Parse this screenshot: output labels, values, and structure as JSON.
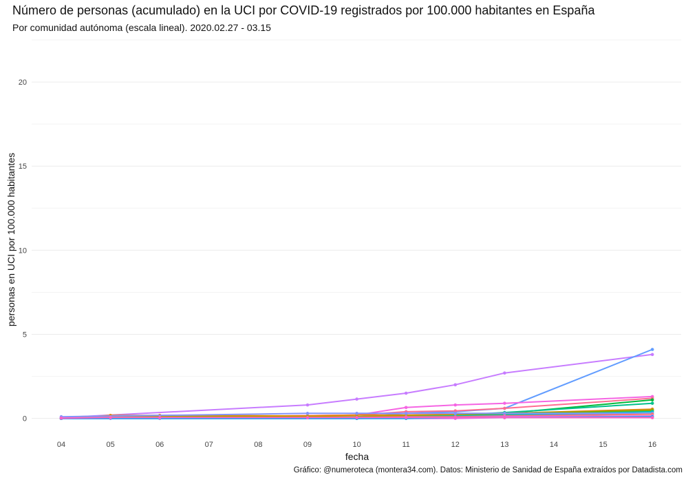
{
  "title": "Número de personas (acumulado) en la UCI por COVID-19 registrados por 100.000 habitantes en España",
  "subtitle": "Por comunidad autónoma (escala lineal). 2020.02.27 - 03.15",
  "caption": "Gráfico: @numeroteca (montera34.com). Datos: Ministerio de Sanidad de España extraídos por Datadista.com",
  "chart_data": {
    "type": "line",
    "xlabel": "fecha",
    "ylabel": "personas en UCI por 100.000 habitantes",
    "x_ticks": [
      "04",
      "05",
      "06",
      "07",
      "08",
      "09",
      "10",
      "11",
      "12",
      "13",
      "14",
      "15",
      "16"
    ],
    "y_ticks": [
      0,
      5,
      10,
      15,
      20
    ],
    "ylim": [
      -0.3,
      22.5
    ],
    "grid": true,
    "legend": "none",
    "series": [
      {
        "color": "#c77cff",
        "x": [
          4,
          9,
          10,
          11,
          12,
          13,
          16
        ],
        "values": [
          0.05,
          0.8,
          1.15,
          1.5,
          2.0,
          2.7,
          3.8
        ]
      },
      {
        "color": "#619cff",
        "x": [
          4,
          5,
          6,
          9,
          10,
          11,
          12,
          13,
          16
        ],
        "values": [
          0.0,
          0.0,
          0.0,
          0.1,
          0.1,
          0.3,
          0.4,
          0.6,
          4.1
        ]
      },
      {
        "color": "#f564e3",
        "x": [
          4,
          10,
          11,
          12,
          13,
          16
        ],
        "values": [
          0.0,
          0.2,
          0.65,
          0.8,
          0.9,
          1.3
        ]
      },
      {
        "color": "#ff6c91",
        "x": [
          4,
          10,
          11,
          12,
          13,
          16
        ],
        "values": [
          0.0,
          0.2,
          0.4,
          0.45,
          0.6,
          1.2
        ]
      },
      {
        "color": "#00ba38",
        "x": [
          4,
          10,
          11,
          12,
          13,
          16
        ],
        "values": [
          0.0,
          0.05,
          0.1,
          0.15,
          0.3,
          1.1
        ]
      },
      {
        "color": "#00c08b",
        "x": [
          4,
          10,
          11,
          12,
          13,
          16
        ],
        "values": [
          0.0,
          0.05,
          0.15,
          0.2,
          0.35,
          0.9
        ]
      },
      {
        "color": "#e68613",
        "x": [
          4,
          5,
          6,
          9,
          10,
          11,
          12,
          13,
          16
        ],
        "values": [
          0.0,
          0.18,
          0.18,
          0.15,
          0.2,
          0.2,
          0.25,
          0.3,
          0.55
        ]
      },
      {
        "color": "#aba300",
        "x": [
          4,
          5,
          6,
          9,
          10,
          11,
          12,
          13,
          16
        ],
        "values": [
          0.0,
          0.1,
          0.12,
          0.1,
          0.1,
          0.15,
          0.2,
          0.25,
          0.5
        ]
      },
      {
        "color": "#7cae00",
        "x": [
          4,
          10,
          11,
          12,
          13,
          16
        ],
        "values": [
          0.0,
          0.05,
          0.1,
          0.15,
          0.3,
          0.45
        ]
      },
      {
        "color": "#00bfc4",
        "x": [
          4,
          10,
          11,
          12,
          13,
          16
        ],
        "values": [
          0.0,
          0.05,
          0.1,
          0.15,
          0.2,
          0.4
        ]
      },
      {
        "color": "#00a9ff",
        "x": [
          4,
          10,
          11,
          12,
          13,
          16
        ],
        "values": [
          0.0,
          0.0,
          0.05,
          0.1,
          0.15,
          0.3
        ]
      },
      {
        "color": "#8494ff",
        "x": [
          4,
          9,
          10,
          11,
          12,
          13,
          16
        ],
        "values": [
          0.1,
          0.3,
          0.3,
          0.3,
          0.3,
          0.3,
          0.3
        ]
      },
      {
        "color": "#f8766d",
        "x": [
          4,
          10,
          11,
          12,
          13,
          16
        ],
        "values": [
          0.0,
          0.05,
          0.1,
          0.1,
          0.15,
          0.25
        ]
      },
      {
        "color": "#e76bf3",
        "x": [
          4,
          10,
          11,
          12,
          13,
          16
        ],
        "values": [
          0.0,
          0.0,
          0.05,
          0.05,
          0.1,
          0.15
        ]
      },
      {
        "color": "#ed68ed",
        "x": [
          4,
          10,
          11,
          12,
          13,
          16
        ],
        "values": [
          0.0,
          0.0,
          0.0,
          0.0,
          0.05,
          0.05
        ]
      },
      {
        "color": "#00b0f6",
        "x": [
          4,
          10,
          11,
          12,
          13,
          16
        ],
        "values": [
          0.0,
          0.0,
          0.0,
          0.05,
          0.05,
          0.1
        ]
      },
      {
        "color": "#ff61c3",
        "x": [
          4,
          5,
          6,
          9,
          10,
          11,
          12,
          13,
          16
        ],
        "values": [
          0.02,
          0.05,
          0.05,
          0.05,
          0.05,
          0.05,
          0.05,
          0.05,
          0.05
        ]
      }
    ]
  }
}
